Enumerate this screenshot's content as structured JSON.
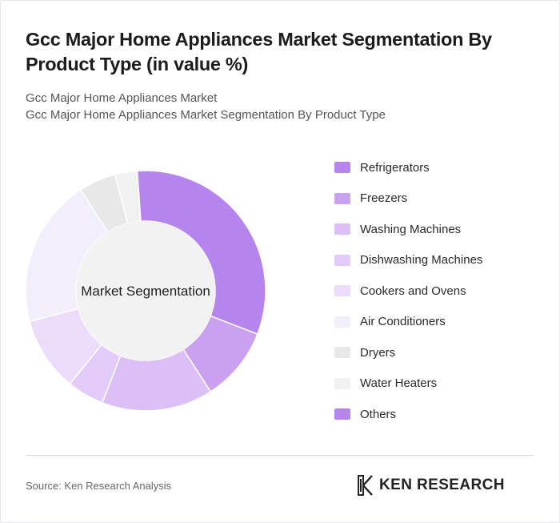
{
  "header": {
    "title": "Gcc Major Home Appliances Market Segmentation By Product Type (in value %)",
    "subtitle_1": "Gcc Major Home Appliances Market",
    "subtitle_2": "Gcc Major Home Appliances Market Segmentation By Product Type"
  },
  "chart_data": {
    "type": "pie",
    "center_label": "Market Segmentation",
    "legend_position": "right",
    "categories": [
      "Refrigerators",
      "Freezers",
      "Washing Machines",
      "Dishwashing Machines",
      "Cookers and Ovens",
      "Air Conditioners",
      "Dryers",
      "Water Heaters",
      "Others"
    ],
    "values": [
      32,
      10,
      15,
      5,
      10,
      20,
      5,
      3,
      0
    ],
    "colors": [
      "#b584ec",
      "#c9a1f0",
      "#dcbff7",
      "#e2cbf8",
      "#ecdcfa",
      "#f3eefb",
      "#e8e8e8",
      "#f1f1f1",
      "#b584ec"
    ]
  },
  "footer": {
    "source": "Source: Ken Research Analysis",
    "brand": "KEN RESEARCH"
  }
}
